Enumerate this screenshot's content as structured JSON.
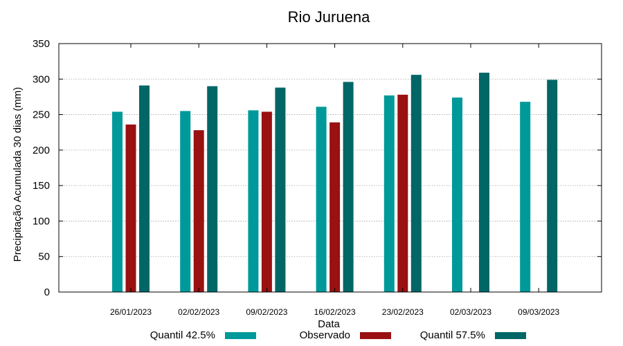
{
  "chart_data": {
    "type": "bar",
    "title": "Rio Juruena",
    "xlabel": "Data",
    "ylabel": "Precipitação Acumulada 30 dias (mm)",
    "ylim": [
      0,
      350
    ],
    "yticks": [
      0,
      50,
      100,
      150,
      200,
      250,
      300,
      350
    ],
    "grid": true,
    "legend_position": "bottom",
    "categories": [
      "26/01/2023",
      "02/02/2023",
      "09/02/2023",
      "16/02/2023",
      "23/02/2023",
      "02/03/2023",
      "09/03/2023"
    ],
    "series": [
      {
        "name": "Quantil 42.5%",
        "color": "#009999",
        "values": [
          254,
          255,
          256,
          261,
          277,
          274,
          268
        ]
      },
      {
        "name": "Observado",
        "color": "#991111",
        "values": [
          236,
          228,
          254,
          239,
          278,
          null,
          null
        ]
      },
      {
        "name": "Quantil 57.5%",
        "color": "#006666",
        "values": [
          291,
          290,
          288,
          296,
          306,
          309,
          299
        ]
      }
    ]
  }
}
